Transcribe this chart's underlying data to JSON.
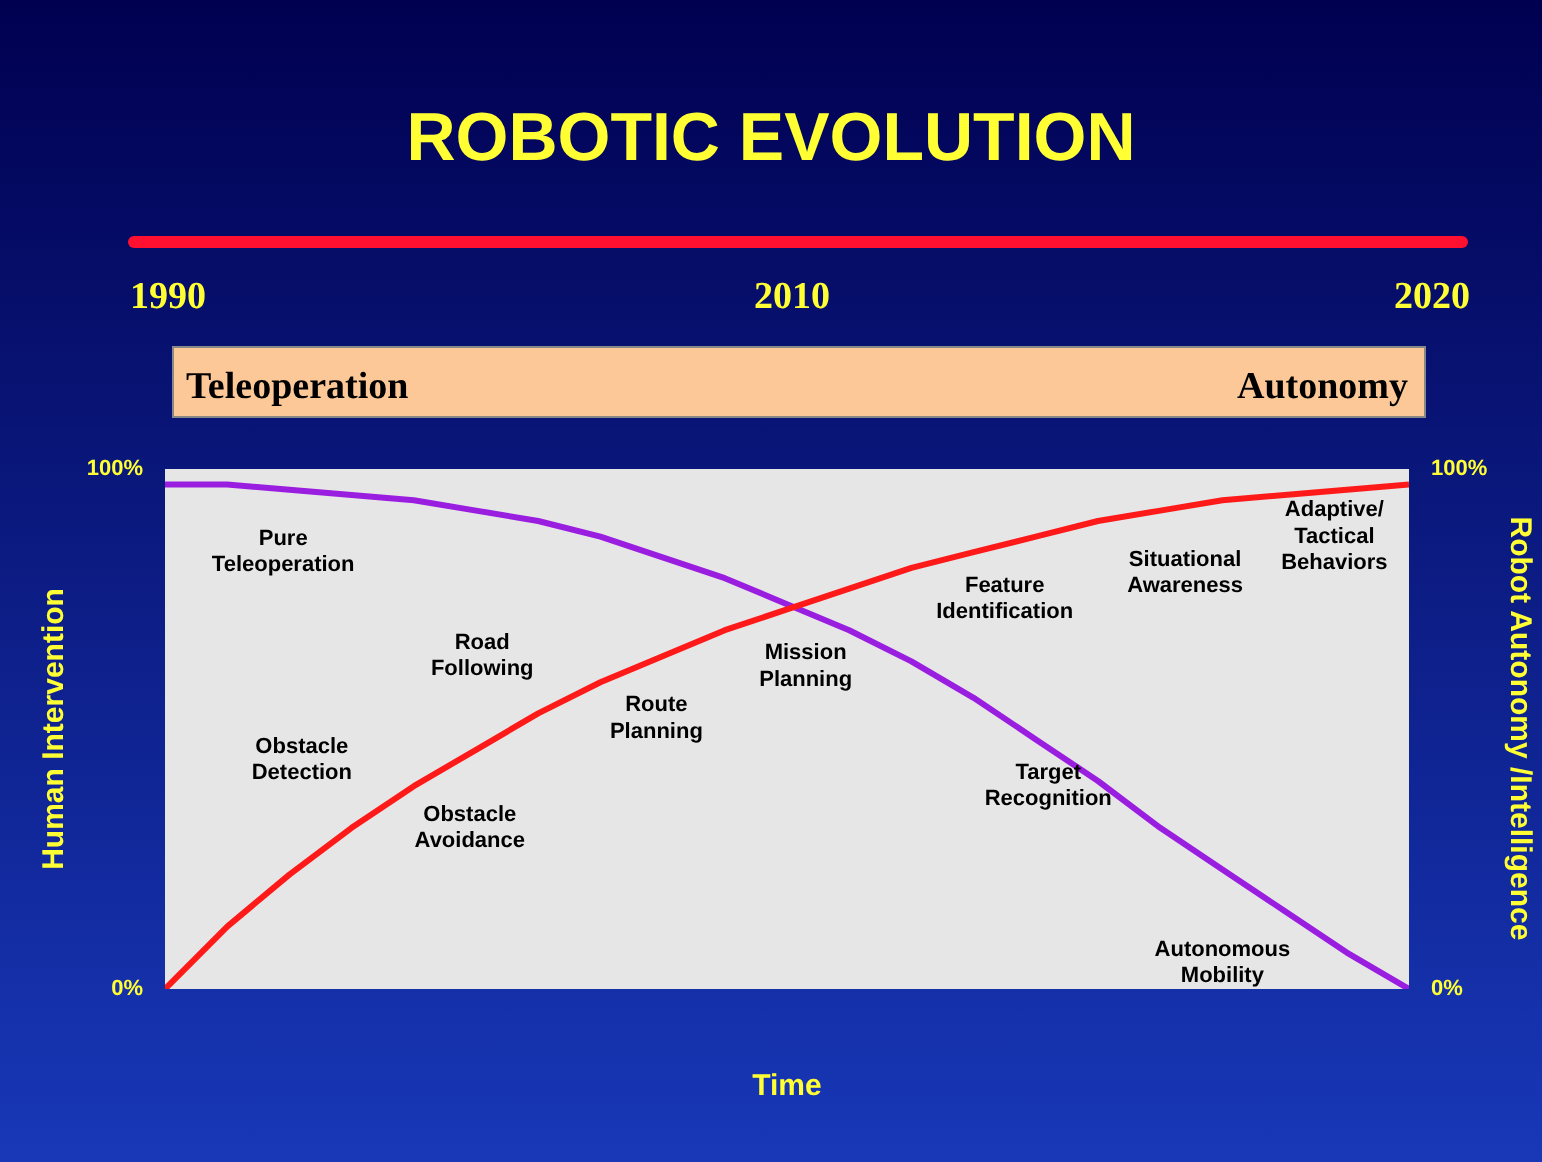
{
  "chart_data": {
    "type": "line",
    "title": "ROBOTIC EVOLUTION",
    "xlabel": "Time",
    "ylabel": "Human Intervention",
    "y2label": "Robot Autonomy /Intelligence",
    "categories": [
      null,
      null,
      null,
      null,
      null,
      null,
      null,
      null,
      null,
      null,
      null,
      null,
      null,
      null,
      null,
      null,
      null,
      null,
      null,
      null,
      null
    ],
    "series": [
      {
        "color": "#9a1ee0",
        "values": [
          97,
          97,
          96,
          95,
          94,
          92,
          90,
          87,
          83,
          79,
          74,
          69,
          63,
          56,
          48,
          40,
          31,
          23,
          15,
          7,
          0
        ]
      },
      {
        "color": "#ff1a1a",
        "values": [
          0,
          12,
          22,
          31,
          39,
          46,
          53,
          59,
          64,
          69,
          73,
          77,
          81,
          84,
          87,
          90,
          92,
          94,
          95,
          96,
          97
        ]
      }
    ],
    "ylim": [
      0,
      100
    ],
    "yticks": [
      {
        "value": 0,
        "label": "0%"
      },
      {
        "value": 100,
        "label": "100%"
      }
    ],
    "y2lim": [
      0,
      100
    ],
    "y2ticks": [
      {
        "value": 0,
        "label": "0%"
      },
      {
        "value": 100,
        "label": "100%"
      }
    ],
    "annotations": [
      "1990",
      "2010",
      "2020",
      "Teleoperation",
      "Autonomy",
      "Pure\nTeleoperation",
      "Road\nFollowing",
      "Obstacle\nDetection",
      "Obstacle\nAvoidance",
      "Route\nPlanning",
      "Mission\nPlanning",
      "Feature\nIdentification",
      "Situational\nAwareness",
      "Adaptive/\nTactical\nBehaviors",
      "Target\nRecognition",
      "Autonomous\nMobility"
    ]
  }
}
